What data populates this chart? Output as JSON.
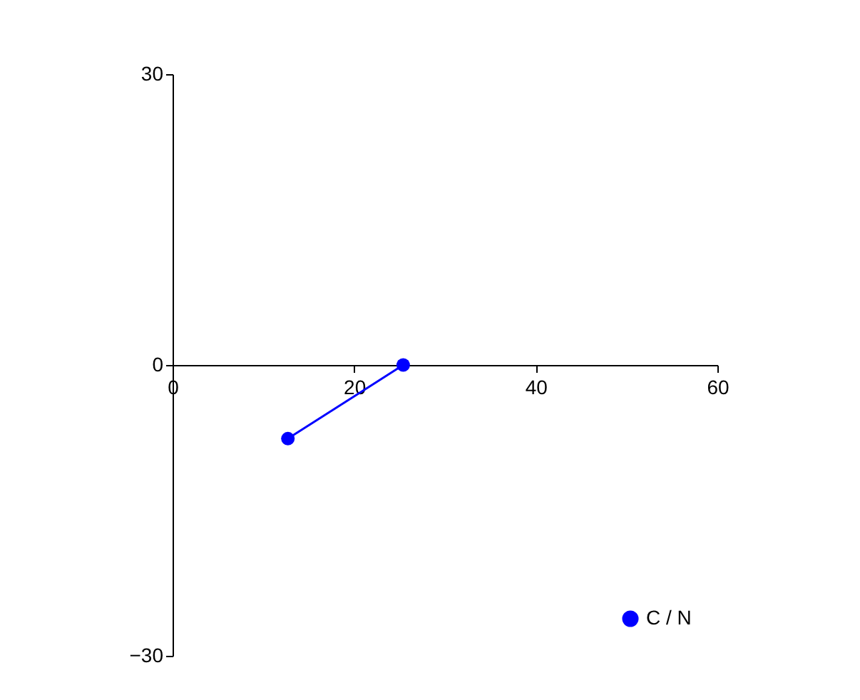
{
  "chart_data": {
    "type": "line",
    "x": [
      12.7,
      25.4
    ],
    "series": [
      {
        "name": "C / N",
        "color": "#0000ff",
        "values": [
          -7.6,
          0
        ]
      }
    ],
    "xlim": [
      0,
      60
    ],
    "xticks": [
      0,
      20,
      40,
      60
    ],
    "ylim": [
      -30,
      30
    ],
    "yticks": [
      -30,
      0,
      30
    ],
    "grid": false,
    "legend": "bottom right",
    "marker": "circle",
    "line_style": "solid"
  }
}
